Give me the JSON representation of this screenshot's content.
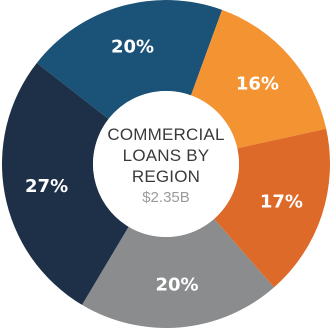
{
  "chart_data": {
    "type": "pie",
    "title": "COMMERCIAL LOANS BY REGION",
    "center_lines": [
      "COMMERCIAL",
      "LOANS BY",
      "REGION"
    ],
    "total": "$2.35B",
    "slices": [
      {
        "label": "20%",
        "value": 20,
        "color": "#1b5278"
      },
      {
        "label": "16%",
        "value": 16,
        "color": "#f49332"
      },
      {
        "label": "17%",
        "value": 17,
        "color": "#de6a29"
      },
      {
        "label": "20%",
        "value": 20,
        "color": "#8b8c8e"
      },
      {
        "label": "27%",
        "value": 27,
        "color": "#1d3048"
      }
    ]
  }
}
